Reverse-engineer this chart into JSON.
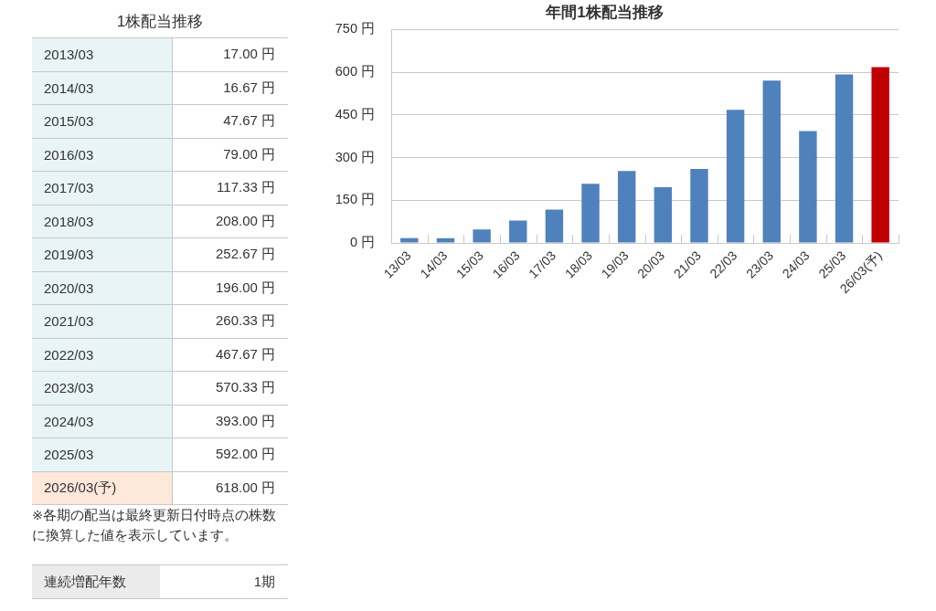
{
  "chart_data": [
    {
      "type": "other",
      "title": "1株配当推移",
      "annotations": [
        "2013/03",
        "17.00 円",
        "2014/03",
        "16.67 円",
        "2015/03",
        "47.67 円",
        "2016/03",
        "79.00 円",
        "2017/03",
        "117.33 円",
        "2018/03",
        "208.00 円",
        "2019/03",
        "252.67 円",
        "2020/03",
        "196.00 円",
        "2021/03",
        "260.33 円",
        "2022/03",
        "467.67 円",
        "2023/03",
        "570.33 円",
        "2024/03",
        "393.00 円",
        "2025/03",
        "592.00 円",
        "2026/03(予)",
        "618.00 円",
        "※各期の配当は最終更新日付時点の株数に換算した値を表示しています。",
        "連続増配年数",
        "1期"
      ]
    },
    {
      "type": "bar",
      "title": "年間1株配当推移",
      "categories": [
        "13/03",
        "14/03",
        "15/03",
        "16/03",
        "17/03",
        "18/03",
        "19/03",
        "20/03",
        "21/03",
        "22/03",
        "23/03",
        "24/03",
        "25/03",
        "26/03(予)"
      ],
      "values": [
        17.0,
        16.67,
        47.67,
        79.0,
        117.33,
        208.0,
        252.67,
        196.0,
        260.33,
        467.67,
        570.33,
        393.0,
        592.0,
        618.0
      ],
      "colors": [
        "#4f81bd",
        "#4f81bd",
        "#4f81bd",
        "#4f81bd",
        "#4f81bd",
        "#4f81bd",
        "#4f81bd",
        "#4f81bd",
        "#4f81bd",
        "#4f81bd",
        "#4f81bd",
        "#4f81bd",
        "#4f81bd",
        "#c00000"
      ],
      "ylim": [
        0,
        750
      ],
      "yticks": [
        {
          "value": 0,
          "label": "0 円"
        },
        {
          "value": 150,
          "label": "150 円"
        },
        {
          "value": 300,
          "label": "300 円"
        },
        {
          "value": 450,
          "label": "450 円"
        },
        {
          "value": 600,
          "label": "600 円"
        },
        {
          "value": 750,
          "label": "750 円"
        }
      ],
      "grid": "y"
    }
  ]
}
